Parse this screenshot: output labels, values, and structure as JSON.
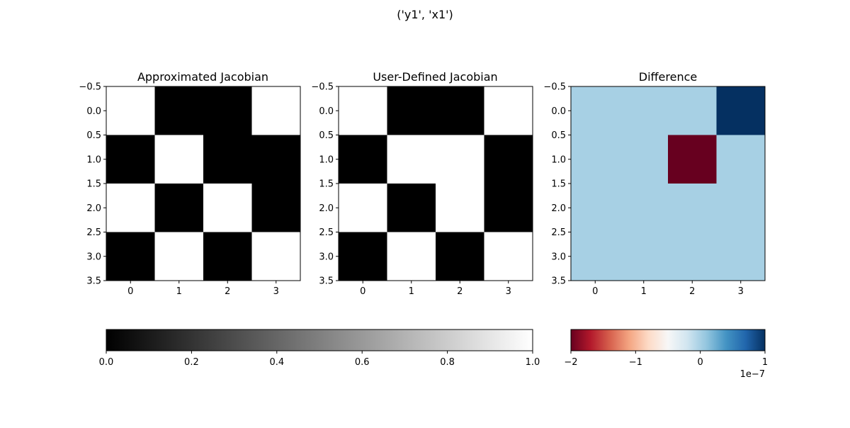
{
  "figure": {
    "suptitle": "('y1', 'x1')"
  },
  "chart_data": [
    {
      "type": "heatmap",
      "title": "Approximated Jacobian",
      "cmap": "gray",
      "x": [
        0,
        1,
        2,
        3
      ],
      "y": [
        0,
        1,
        2,
        3
      ],
      "xlim": [
        -0.5,
        3.5
      ],
      "ylim": [
        3.5,
        -0.5
      ],
      "xticks": [
        "0",
        "1",
        "2",
        "3"
      ],
      "yticks": [
        "−0.5",
        "0.0",
        "0.5",
        "1.0",
        "1.5",
        "2.0",
        "2.5",
        "3.0",
        "3.5"
      ],
      "values": [
        [
          1,
          0,
          0,
          1
        ],
        [
          0,
          1,
          0,
          0
        ],
        [
          1,
          0,
          1,
          0
        ],
        [
          0,
          1,
          0,
          1
        ]
      ]
    },
    {
      "type": "heatmap",
      "title": "User-Defined Jacobian",
      "cmap": "gray",
      "x": [
        0,
        1,
        2,
        3
      ],
      "y": [
        0,
        1,
        2,
        3
      ],
      "xlim": [
        -0.5,
        3.5
      ],
      "ylim": [
        3.5,
        -0.5
      ],
      "xticks": [
        "0",
        "1",
        "2",
        "3"
      ],
      "yticks": [
        "−0.5",
        "0.0",
        "0.5",
        "1.0",
        "1.5",
        "2.0",
        "2.5",
        "3.0",
        "3.5"
      ],
      "values": [
        [
          1,
          0,
          0,
          1
        ],
        [
          0,
          1,
          1,
          0
        ],
        [
          1,
          0,
          1,
          0
        ],
        [
          0,
          1,
          0,
          1
        ]
      ]
    },
    {
      "type": "heatmap",
      "title": "Difference",
      "cmap": "RdBu",
      "x": [
        0,
        1,
        2,
        3
      ],
      "y": [
        0,
        1,
        2,
        3
      ],
      "xlim": [
        -0.5,
        3.5
      ],
      "ylim": [
        3.5,
        -0.5
      ],
      "xticks": [
        "0",
        "1",
        "2",
        "3"
      ],
      "yticks": [
        "−0.5",
        "0.0",
        "0.5",
        "1.0",
        "1.5",
        "2.0",
        "2.5",
        "3.0",
        "3.5"
      ],
      "values": [
        [
          0,
          0,
          0,
          1e-07
        ],
        [
          0,
          0,
          -2e-07,
          0
        ],
        [
          0,
          0,
          0,
          0
        ],
        [
          0,
          0,
          0,
          0
        ]
      ]
    }
  ],
  "colorbars": [
    {
      "cmap": "gray",
      "range": [
        0.0,
        1.0
      ],
      "ticks": [
        0.0,
        0.2,
        0.4,
        0.6,
        0.8,
        1.0
      ],
      "tick_labels": [
        "0.0",
        "0.2",
        "0.4",
        "0.6",
        "0.8",
        "1.0"
      ],
      "offset_label": ""
    },
    {
      "cmap": "RdBu",
      "range": [
        -2,
        1
      ],
      "ticks": [
        -2,
        -1,
        0,
        1
      ],
      "tick_labels": [
        "−2",
        "−1",
        "0",
        "1"
      ],
      "offset_label": "1e−7"
    }
  ],
  "colors": {
    "gray": [
      "#000000",
      "#ffffff"
    ],
    "RdBu": [
      "#67001f",
      "#b2182b",
      "#d6604d",
      "#f4a582",
      "#fddbc7",
      "#f7f7f7",
      "#d1e5f0",
      "#92c5de",
      "#4393c3",
      "#2166ac",
      "#053061"
    ]
  }
}
